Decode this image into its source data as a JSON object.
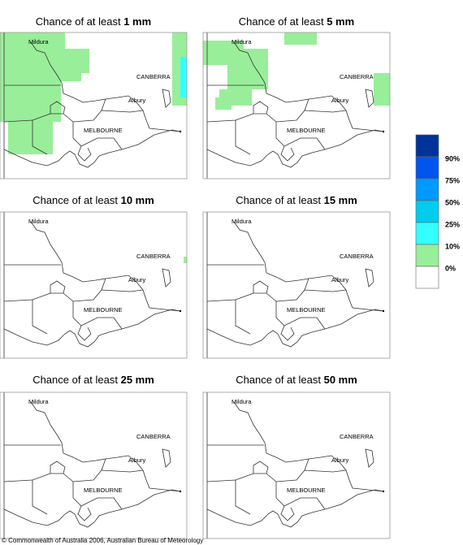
{
  "panels": [
    {
      "title_prefix": "Chance of at least",
      "amount": "1 mm"
    },
    {
      "title_prefix": "Chance of at least",
      "amount": "5 mm"
    },
    {
      "title_prefix": "Chance of at least",
      "amount": "10 mm"
    },
    {
      "title_prefix": "Chance of at least",
      "amount": "15 mm"
    },
    {
      "title_prefix": "Chance of at least",
      "amount": "25 mm"
    },
    {
      "title_prefix": "Chance of at least",
      "amount": "50 mm"
    }
  ],
  "map_labels": [
    "Mildura",
    "CANBERRA",
    "Albury",
    "MELBOURNE"
  ],
  "legend": [
    {
      "color": "#003399",
      "label": "90%"
    },
    {
      "color": "#0055ee",
      "label": "75%"
    },
    {
      "color": "#0099ff",
      "label": "50%"
    },
    {
      "color": "#00ccee",
      "label": "25%"
    },
    {
      "color": "#33ffff",
      "label": "10%"
    },
    {
      "color": "#99ee99",
      "label": "0%"
    },
    {
      "color": "#ffffff"
    }
  ],
  "footer": "© Commonwealth of Australia 2006, Australian Bureau of Meteorology"
}
